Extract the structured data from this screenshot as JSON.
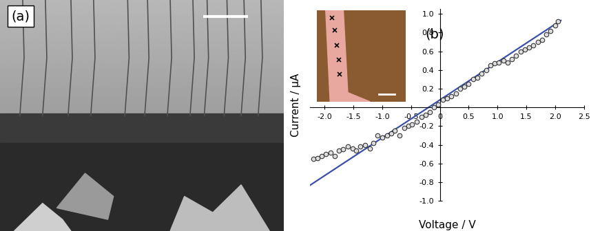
{
  "micrograph": {
    "label": "(a)"
  },
  "chart_data": {
    "type": "scatter",
    "annotation": "(b)",
    "x_label": "Voltage / V",
    "y_label": "Current / μA",
    "xlim": [
      -2.25,
      2.5
    ],
    "ylim": [
      -1.0,
      1.05
    ],
    "xticks": [
      -2.0,
      -1.5,
      -1.0,
      -0.5,
      0,
      0.5,
      1.0,
      1.5,
      2.0,
      2.5
    ],
    "yticks": [
      -1.0,
      -0.8,
      -0.6,
      -0.4,
      -0.2,
      0.2,
      0.4,
      0.6,
      0.8,
      1.0
    ],
    "grid": false,
    "series": [
      {
        "type": "scatter",
        "color": "#333333",
        "marker": "o",
        "x": [
          -2.2,
          -2.12,
          -2.05,
          -1.98,
          -1.9,
          -1.82,
          -1.75,
          -1.68,
          -1.6,
          -1.52,
          -1.45,
          -1.38,
          -1.3,
          -1.22,
          -1.15,
          -1.08,
          -1.0,
          -0.92,
          -0.85,
          -0.78,
          -0.7,
          -0.62,
          -0.55,
          -0.48,
          -0.4,
          -0.32,
          -0.25,
          -0.18,
          -0.1,
          -0.03,
          0.05,
          0.12,
          0.2,
          0.28,
          0.35,
          0.42,
          0.5,
          0.58,
          0.65,
          0.72,
          0.8,
          0.88,
          0.95,
          1.02,
          1.1,
          1.18,
          1.25,
          1.32,
          1.4,
          1.48,
          1.55,
          1.62,
          1.7,
          1.78,
          1.85,
          1.92,
          2.0,
          2.05
        ],
        "values": [
          -0.55,
          -0.54,
          -0.52,
          -0.5,
          -0.48,
          -0.52,
          -0.46,
          -0.45,
          -0.42,
          -0.44,
          -0.46,
          -0.42,
          -0.4,
          -0.44,
          -0.38,
          -0.3,
          -0.32,
          -0.3,
          -0.28,
          -0.25,
          -0.3,
          -0.22,
          -0.2,
          -0.18,
          -0.15,
          -0.1,
          -0.08,
          -0.05,
          0.0,
          0.03,
          0.08,
          0.1,
          0.12,
          0.15,
          0.2,
          0.22,
          0.25,
          0.3,
          0.32,
          0.36,
          0.4,
          0.45,
          0.47,
          0.48,
          0.5,
          0.48,
          0.52,
          0.55,
          0.6,
          0.62,
          0.64,
          0.66,
          0.7,
          0.72,
          0.78,
          0.82,
          0.88,
          0.92
        ]
      },
      {
        "type": "line",
        "color": "#3a4fa8",
        "line_style": "solid",
        "x": [
          -2.25,
          2.1
        ],
        "values": [
          -0.83,
          0.93
        ]
      }
    ]
  }
}
